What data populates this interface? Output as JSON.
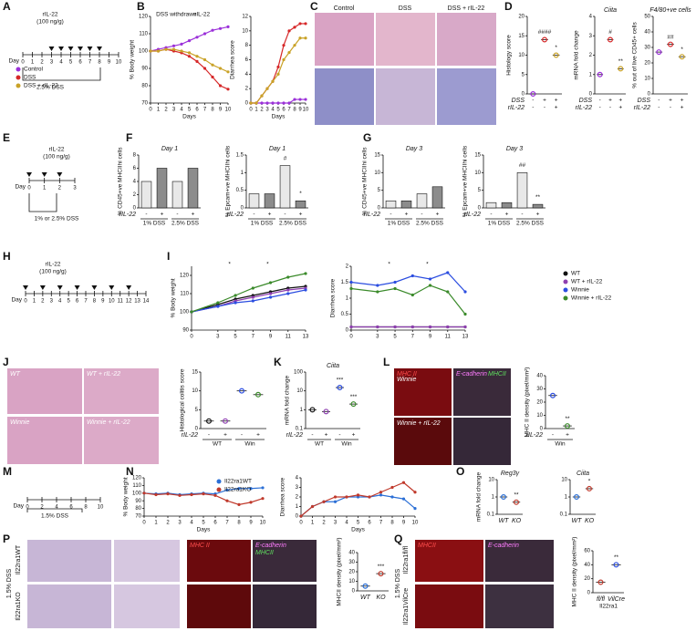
{
  "figure": {
    "panels": [
      "A",
      "B",
      "C",
      "D",
      "E",
      "F",
      "G",
      "H",
      "I",
      "J",
      "K",
      "L",
      "M",
      "N",
      "O",
      "P",
      "Q"
    ]
  },
  "schematics": [
    {
      "top": "rIL-22",
      "sub": "(100 ng/g)",
      "axis": "Day",
      "bottom": "2.5% DSS",
      "days": [
        0,
        1,
        2,
        3,
        4,
        5,
        6,
        7,
        8,
        9,
        10
      ],
      "injections": [
        3,
        4,
        5,
        6,
        7,
        8
      ]
    },
    {
      "top": "rIL-22",
      "sub": "(100 ng/g)",
      "axis": "Day",
      "bottom": "1% or 2.5% DSS",
      "days": [
        0,
        1,
        2,
        3
      ],
      "injections": [
        0,
        1,
        2
      ]
    },
    {
      "top": "rIL-22",
      "sub": "(100 ng/g)",
      "axis": "Day",
      "days": [
        0,
        1,
        2,
        3,
        4,
        5,
        6,
        7,
        8,
        9,
        10,
        11,
        12,
        13,
        14
      ],
      "injections": [
        0,
        2,
        4,
        6,
        8,
        10,
        12
      ]
    },
    {
      "axis": "Day",
      "bottom": "1.5% DSS",
      "days": [
        0,
        2,
        4,
        6,
        8,
        10
      ],
      "injections": []
    }
  ],
  "images": {
    "C": [
      "Control",
      "DSS",
      "DSS + rIL-22"
    ],
    "J": [
      "WT",
      "WT + rIL-22",
      "Winnie",
      "Winnie + rIL-22"
    ],
    "L": [
      "MHC II",
      "E-cadherin",
      "MHCII",
      "Winnie",
      "Winnie + rIL-22"
    ],
    "P": [
      "Il22ra1WT",
      "Il22ra1KO",
      "1.5% DSS",
      "MHC II",
      "E-cadherin",
      "MHCII"
    ],
    "Q": [
      "Il22ra1fl/fl",
      "Il22ra1VilCre",
      "1.5% DSS",
      "MHCII",
      "E-cadherin"
    ]
  },
  "chart_data": [
    {
      "type": "line",
      "ylabel": "% Body weight",
      "xlabel": "Days",
      "x": [
        0,
        1,
        2,
        3,
        4,
        5,
        6,
        7,
        8,
        9,
        10
      ],
      "xlim": [
        0,
        10
      ],
      "xticks": [
        0,
        1,
        2,
        3,
        4,
        5,
        6,
        7,
        8,
        9,
        10
      ],
      "ylim": [
        70,
        120
      ],
      "yticks": [
        70,
        80,
        90,
        100,
        110,
        120
      ],
      "legend": "outside",
      "annotations": [
        "DSS withdrawn",
        "rIL-22"
      ],
      "series": [
        {
          "name": "Control",
          "color": "#9b30d9",
          "values": [
            100,
            101,
            102,
            103,
            104,
            106,
            108,
            110,
            112,
            113,
            114
          ]
        },
        {
          "name": "DSS",
          "color": "#d62728",
          "values": [
            100,
            100,
            101,
            100,
            99,
            97,
            94,
            90,
            85,
            80,
            78
          ]
        },
        {
          "name": "DSS + rIL-22",
          "color": "#c9a227",
          "values": [
            100,
            100,
            101,
            101,
            100,
            99,
            97,
            95,
            92,
            90,
            88
          ]
        }
      ]
    },
    {
      "type": "line",
      "ylabel": "Diarrhea score",
      "xlabel": "Days",
      "x": [
        0,
        1,
        2,
        3,
        4,
        5,
        6,
        7,
        8,
        9,
        10
      ],
      "xlim": [
        0,
        10
      ],
      "xticks": [
        0,
        1,
        2,
        3,
        4,
        5,
        6,
        7,
        8,
        9,
        10
      ],
      "ylim": [
        0,
        12
      ],
      "yticks": [
        0,
        2,
        4,
        6,
        8,
        10,
        12
      ],
      "series": [
        {
          "name": "Control",
          "color": "#9b30d9",
          "values": [
            0,
            0,
            0,
            0,
            0,
            0,
            0,
            0,
            0.5,
            0.5,
            0.5
          ]
        },
        {
          "name": "DSS",
          "color": "#d62728",
          "values": [
            0,
            0,
            1,
            2,
            3,
            5,
            8,
            10,
            10.5,
            11,
            11
          ]
        },
        {
          "name": "DSS + rIL-22",
          "color": "#c9a227",
          "values": [
            0,
            0,
            1,
            2,
            3,
            4,
            6,
            7,
            8,
            9,
            9
          ]
        }
      ]
    },
    {
      "type": "dot",
      "ylabel": "Histology score",
      "ylim": [
        0,
        20
      ],
      "yticks": [
        0,
        5,
        10,
        15,
        20
      ],
      "values": [
        0,
        14,
        10
      ],
      "colors": [
        "#9b30d9",
        "#d62728",
        "#c9a227"
      ],
      "annotations": [
        "####",
        "*"
      ],
      "group_rows": [
        {
          "label": "DSS",
          "marks": [
            "-",
            "+",
            "+"
          ]
        },
        {
          "label": "rIL-22",
          "marks": [
            "-",
            "-",
            "+"
          ]
        }
      ]
    },
    {
      "type": "dot",
      "title": "Ciita",
      "ylabel": "mRNA fold change",
      "ylim": [
        0,
        4
      ],
      "yticks": [
        0,
        1,
        2,
        3,
        4
      ],
      "values": [
        1,
        2.8,
        1.3
      ],
      "colors": [
        "#9b30d9",
        "#d62728",
        "#c9a227"
      ],
      "annotations": [
        "#",
        "**"
      ],
      "group_rows": [
        {
          "label": "DSS",
          "marks": [
            "-",
            "+",
            "+"
          ]
        },
        {
          "label": "rIL-22",
          "marks": [
            "-",
            "-",
            "+"
          ]
        }
      ]
    },
    {
      "type": "dot",
      "title": "F4/80+ve cells",
      "ylabel": "% out of live CD45+ cells",
      "ylim": [
        0,
        50
      ],
      "yticks": [
        0,
        10,
        20,
        30,
        40,
        50
      ],
      "values": [
        27,
        32,
        24
      ],
      "colors": [
        "#9b30d9",
        "#d62728",
        "#c9a227"
      ],
      "annotations": [
        "##",
        "*"
      ],
      "group_rows": [
        {
          "label": "DSS",
          "marks": [
            "-",
            "+",
            "+"
          ]
        },
        {
          "label": "rIL-22",
          "marks": [
            "-",
            "-",
            "+"
          ]
        }
      ]
    },
    {
      "type": "bar",
      "title": "Day 1",
      "ylabel": "% CD45+ve MHCIIhi cells",
      "ylim": [
        0,
        8
      ],
      "yticks": [
        0,
        2,
        4,
        6,
        8
      ],
      "values": [
        4,
        6,
        4,
        6
      ],
      "colors": [
        "#e8e8e8",
        "#8c8c8c",
        "#e8e8e8",
        "#8c8c8c"
      ],
      "group_rows": [
        {
          "label": "rIL-22",
          "marks": [
            "-",
            "+",
            "-",
            "+"
          ]
        }
      ],
      "group_spans": [
        "1% DSS",
        "2.5% DSS"
      ]
    },
    {
      "type": "bar",
      "title": "Day 1",
      "ylabel": "% Epcam+ve MHCIIhi cells",
      "ylim": [
        0,
        1.5
      ],
      "yticks": [
        0,
        0.5,
        1,
        1.5
      ],
      "values": [
        0.4,
        0.4,
        1.2,
        0.2
      ],
      "colors": [
        "#e8e8e8",
        "#8c8c8c",
        "#e8e8e8",
        "#8c8c8c"
      ],
      "annotations": [
        "#",
        "*"
      ],
      "group_rows": [
        {
          "label": "rIL-22",
          "marks": [
            "-",
            "+",
            "-",
            "+"
          ]
        }
      ],
      "group_spans": [
        "1% DSS",
        "2.5% DSS"
      ]
    },
    {
      "type": "bar",
      "title": "Day 3",
      "ylabel": "% CD45+ve MHCIIhi cells",
      "ylim": [
        0,
        15
      ],
      "yticks": [
        0,
        5,
        10,
        15
      ],
      "values": [
        2,
        2,
        4,
        6
      ],
      "colors": [
        "#e8e8e8",
        "#8c8c8c",
        "#e8e8e8",
        "#8c8c8c"
      ],
      "group_rows": [
        {
          "label": "rIL-22",
          "marks": [
            "-",
            "+",
            "-",
            "+"
          ]
        }
      ],
      "group_spans": [
        "1% DSS",
        "2.5% DSS"
      ]
    },
    {
      "type": "bar",
      "title": "Day 3",
      "ylabel": "% Epcam+ve MHCIIhi cells",
      "ylim": [
        0,
        15
      ],
      "yticks": [
        0,
        5,
        10,
        15
      ],
      "values": [
        1.5,
        1.5,
        10,
        1
      ],
      "colors": [
        "#e8e8e8",
        "#8c8c8c",
        "#e8e8e8",
        "#8c8c8c"
      ],
      "annotations": [
        "##",
        "**"
      ],
      "group_rows": [
        {
          "label": "rIL-22",
          "marks": [
            "-",
            "+",
            "-",
            "+"
          ]
        }
      ],
      "group_spans": [
        "1% DSS",
        "2.5% DSS"
      ]
    },
    {
      "type": "line",
      "ylabel": "% Body weight",
      "x": [
        0,
        3,
        5,
        7,
        9,
        11,
        13
      ],
      "xlim": [
        0,
        13
      ],
      "xticks": [
        0,
        3,
        5,
        7,
        9,
        11,
        13
      ],
      "ylim": [
        90,
        125
      ],
      "yticks": [
        90,
        100,
        110,
        120
      ],
      "legend": "outside",
      "annotations": [
        "*",
        "*"
      ],
      "series": [
        {
          "name": "WT",
          "color": "#111111",
          "values": [
            100,
            104,
            107,
            109,
            111,
            113,
            114
          ]
        },
        {
          "name": "WT + rIL-22",
          "color": "#8e3fb0",
          "values": [
            100,
            103,
            106,
            108,
            110,
            112,
            113
          ]
        },
        {
          "name": "Winnie",
          "color": "#2b4de0",
          "values": [
            100,
            103,
            105,
            106,
            108,
            110,
            112
          ]
        },
        {
          "name": "Winnie + rIL-22",
          "color": "#3a8a2a",
          "values": [
            100,
            105,
            109,
            113,
            116,
            119,
            121
          ]
        }
      ]
    },
    {
      "type": "line",
      "ylabel": "Diarrhea score",
      "x": [
        0,
        3,
        5,
        7,
        9,
        11,
        13
      ],
      "xlim": [
        0,
        13
      ],
      "xticks": [
        0,
        3,
        5,
        7,
        9,
        11,
        13
      ],
      "ylim": [
        0,
        2
      ],
      "yticks": [
        0,
        0.5,
        1,
        1.5,
        2
      ],
      "annotations": [
        "*",
        "*"
      ],
      "series": [
        {
          "name": "WT",
          "color": "#111111",
          "values": [
            0.1,
            0.1,
            0.1,
            0.1,
            0.1,
            0.1,
            0.1
          ]
        },
        {
          "name": "WT + rIL-22",
          "color": "#8e3fb0",
          "values": [
            0.1,
            0.1,
            0.1,
            0.1,
            0.1,
            0.1,
            0.1
          ]
        },
        {
          "name": "Winnie",
          "color": "#2b4de0",
          "values": [
            1.5,
            1.4,
            1.5,
            1.7,
            1.6,
            1.8,
            1.2
          ]
        },
        {
          "name": "Winnie + rIL-22",
          "color": "#3a8a2a",
          "values": [
            1.3,
            1.2,
            1.3,
            1.1,
            1.4,
            1.2,
            0.5
          ]
        }
      ]
    },
    {
      "type": "dot",
      "ylabel": "Histological colitis score",
      "ylim": [
        0,
        15
      ],
      "yticks": [
        0,
        5,
        10,
        15
      ],
      "values": [
        2,
        2,
        10,
        9
      ],
      "colors": [
        "#111111",
        "#8e3fb0",
        "#2b4de0",
        "#3a8a2a"
      ],
      "group_rows": [
        {
          "label": "rIL-22",
          "marks": [
            "-",
            "+",
            "-",
            "+"
          ]
        }
      ],
      "group_spans": [
        "WT",
        "Win"
      ]
    },
    {
      "type": "dot",
      "title": "Ciita",
      "ylabel": "mRNA fold change",
      "log": true,
      "ylim": [
        0.1,
        100
      ],
      "yticks": [
        0.1,
        1,
        10,
        100
      ],
      "values": [
        1,
        0.8,
        15,
        2
      ],
      "colors": [
        "#111111",
        "#8e3fb0",
        "#2b4de0",
        "#3a8a2a"
      ],
      "annotations": [
        "***",
        "***"
      ],
      "group_rows": [
        {
          "label": "rIL-22",
          "marks": [
            "-",
            "+",
            "-",
            "+"
          ]
        }
      ],
      "group_spans": [
        "WT",
        "Win"
      ]
    },
    {
      "type": "dot",
      "ylabel": "MHC II density (pixel/mm²)",
      "ylim": [
        0,
        40
      ],
      "yticks": [
        0,
        10,
        20,
        30,
        40
      ],
      "values": [
        25,
        2
      ],
      "colors": [
        "#2b4de0",
        "#3a8a2a"
      ],
      "annotations": [
        "**"
      ],
      "group_rows": [
        {
          "label": "rIL-22",
          "marks": [
            "-",
            "+"
          ]
        }
      ],
      "group_spans": [
        "Win"
      ]
    },
    {
      "type": "line",
      "ylabel": "% Body weight",
      "xlabel": "Days",
      "x": [
        0,
        1,
        2,
        3,
        4,
        5,
        6,
        7,
        8,
        9,
        10
      ],
      "xlim": [
        0,
        10
      ],
      "xticks": [
        0,
        1,
        2,
        3,
        4,
        5,
        6,
        7,
        8,
        9,
        10
      ],
      "ylim": [
        70,
        120
      ],
      "yticks": [
        70,
        80,
        90,
        100,
        110,
        120
      ],
      "legend": "inside",
      "series": [
        {
          "name": "Il22ra1WT",
          "color": "#2b6fd6",
          "values": [
            100,
            99,
            100,
            98,
            99,
            100,
            99,
            104,
            106,
            106,
            107
          ]
        },
        {
          "name": "Il22ra1KO",
          "color": "#c0392b",
          "values": [
            100,
            98,
            99,
            97,
            98,
            99,
            97,
            90,
            85,
            88,
            93
          ]
        }
      ]
    },
    {
      "type": "line",
      "ylabel": "Diarrhea score",
      "xlabel": "Days",
      "x": [
        0,
        1,
        2,
        3,
        4,
        5,
        6,
        7,
        8,
        9,
        10
      ],
      "xlim": [
        0,
        10
      ],
      "xticks": [
        0,
        1,
        2,
        3,
        4,
        5,
        6,
        7,
        8,
        9,
        10
      ],
      "ylim": [
        0,
        4
      ],
      "yticks": [
        0,
        1,
        2,
        3,
        4
      ],
      "series": [
        {
          "name": "Il22ra1WT",
          "color": "#2b6fd6",
          "values": [
            0,
            1,
            1.5,
            1.5,
            2,
            2,
            2,
            2.2,
            2,
            1.8,
            0.8
          ]
        },
        {
          "name": "Il22ra1KO",
          "color": "#c0392b",
          "values": [
            0,
            1,
            1.5,
            2,
            2,
            2.2,
            2,
            2.5,
            3,
            3.5,
            2.5
          ]
        }
      ]
    },
    {
      "type": "dot",
      "title": "Reg3γ",
      "ylabel": "mRNA fold change",
      "log": true,
      "ylim": [
        0.1,
        10
      ],
      "yticks": [
        0.1,
        1,
        10
      ],
      "categories": [
        "WT",
        "KO"
      ],
      "values": [
        1,
        0.5
      ],
      "colors": [
        "#2b6fd6",
        "#c0392b"
      ],
      "annotations": [
        "**"
      ]
    },
    {
      "type": "dot",
      "title": "Ciita",
      "log": true,
      "ylim": [
        0.1,
        10
      ],
      "yticks": [
        0.1,
        1,
        10
      ],
      "categories": [
        "WT",
        "KO"
      ],
      "values": [
        1,
        3
      ],
      "colors": [
        "#2b6fd6",
        "#c0392b"
      ],
      "annotations": [
        "*"
      ]
    },
    {
      "type": "dot",
      "ylabel": "MHCII density (pixel/mm²)",
      "ylim": [
        0,
        40
      ],
      "yticks": [
        0,
        10,
        20,
        30,
        40
      ],
      "categories": [
        "WT",
        "KO"
      ],
      "values": [
        5,
        18
      ],
      "colors": [
        "#2b6fd6",
        "#c0392b"
      ],
      "annotations": [
        "***"
      ]
    },
    {
      "type": "dot",
      "ylabel": "MHC II density (pixel/mm²)",
      "xlabel": "Il22ra1",
      "ylim": [
        0,
        60
      ],
      "yticks": [
        0,
        20,
        40,
        60
      ],
      "categories": [
        "fl/fl",
        "VilCre"
      ],
      "values": [
        15,
        40
      ],
      "colors": [
        "#c0392b",
        "#2b4de0"
      ],
      "annotations": [
        "**"
      ]
    }
  ]
}
